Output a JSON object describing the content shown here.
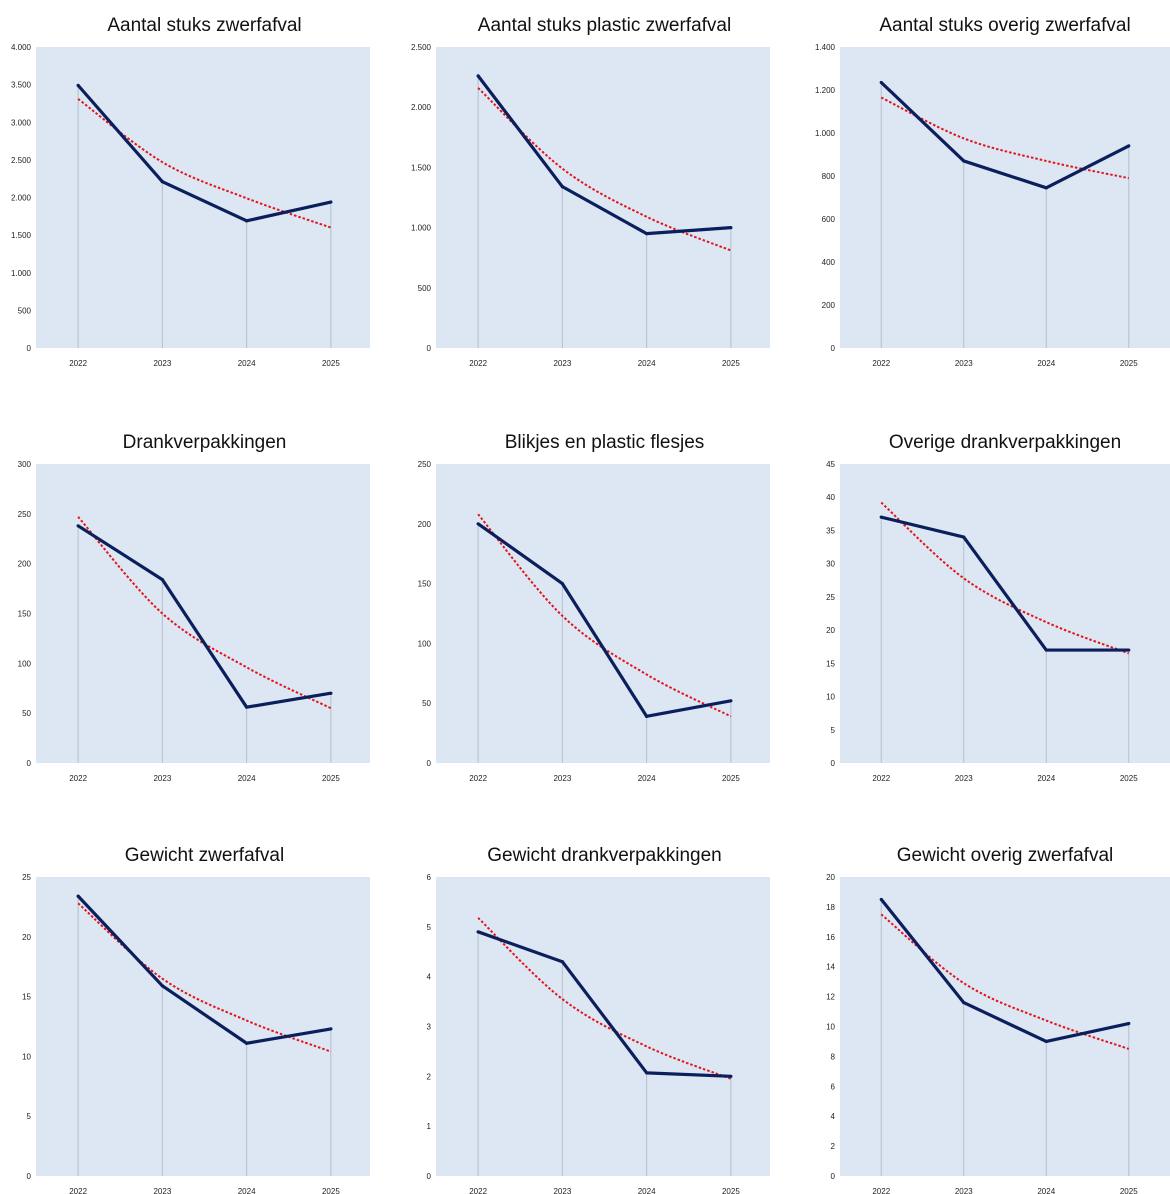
{
  "colors": {
    "plot_background": "#dce7f3",
    "series_line": "#0b1f5c",
    "trend_line": "#e3141b",
    "drop_line": "#b4c0cc"
  },
  "chart_data": [
    {
      "type": "line",
      "title": "Aantal stuks zwerfafval",
      "xlabel": "",
      "ylabel": "",
      "categories": [
        "2022",
        "2023",
        "2024",
        "2025"
      ],
      "series": [
        {
          "values": [
            3490,
            2210,
            1690,
            1940
          ],
          "color": "#0b1f5c"
        }
      ],
      "trendline": {
        "type": "exponential",
        "values": [
          3310,
          2470,
          1990,
          1600
        ],
        "color": "#e3141b",
        "style": "dotted"
      },
      "ylim": [
        0,
        4000
      ],
      "yticks": [
        0,
        500,
        1000,
        1500,
        2000,
        2500,
        3000,
        3500,
        4000
      ],
      "ytick_labels": [
        "0",
        "500",
        "1.000",
        "1.500",
        "2.000",
        "2.500",
        "3.000",
        "3.500",
        "4.000"
      ],
      "grid": false,
      "drop_lines": true
    },
    {
      "type": "line",
      "title": "Aantal stuks plastic zwerfafval",
      "xlabel": "",
      "ylabel": "",
      "categories": [
        "2022",
        "2023",
        "2024",
        "2025"
      ],
      "series": [
        {
          "values": [
            2260,
            1340,
            950,
            1000
          ],
          "color": "#0b1f5c"
        }
      ],
      "trendline": {
        "type": "exponential",
        "values": [
          2160,
          1490,
          1090,
          810
        ],
        "color": "#e3141b",
        "style": "dotted"
      },
      "ylim": [
        0,
        2500
      ],
      "yticks": [
        0,
        500,
        1000,
        1500,
        2000,
        2500
      ],
      "ytick_labels": [
        "0",
        "500",
        "1.000",
        "1.500",
        "2.000",
        "2.500"
      ],
      "grid": false,
      "drop_lines": true
    },
    {
      "type": "line",
      "title": "Aantal stuks overig zwerfafval",
      "xlabel": "",
      "ylabel": "",
      "categories": [
        "2022",
        "2023",
        "2024",
        "2025"
      ],
      "series": [
        {
          "values": [
            1235,
            870,
            745,
            940
          ],
          "color": "#0b1f5c"
        }
      ],
      "trendline": {
        "type": "exponential",
        "values": [
          1165,
          975,
          870,
          790
        ],
        "color": "#e3141b",
        "style": "dotted"
      },
      "ylim": [
        0,
        1400
      ],
      "yticks": [
        0,
        200,
        400,
        600,
        800,
        1000,
        1200,
        1400
      ],
      "ytick_labels": [
        "0",
        "200",
        "400",
        "600",
        "800",
        "1.000",
        "1.200",
        "1.400"
      ],
      "grid": false,
      "drop_lines": true
    },
    {
      "type": "line",
      "title": "Drankverpakkingen",
      "xlabel": "",
      "ylabel": "",
      "categories": [
        "2022",
        "2023",
        "2024",
        "2025"
      ],
      "series": [
        {
          "values": [
            238,
            184,
            56,
            70
          ],
          "color": "#0b1f5c"
        }
      ],
      "trendline": {
        "type": "exponential",
        "values": [
          247,
          150,
          96,
          55
        ],
        "color": "#e3141b",
        "style": "dotted"
      },
      "ylim": [
        0,
        300
      ],
      "yticks": [
        0,
        50,
        100,
        150,
        200,
        250,
        300
      ],
      "ytick_labels": [
        "0",
        "50",
        "100",
        "150",
        "200",
        "250",
        "300"
      ],
      "grid": false,
      "drop_lines": true
    },
    {
      "type": "line",
      "title": "Blikjes en plastic flesjes",
      "xlabel": "",
      "ylabel": "",
      "categories": [
        "2022",
        "2023",
        "2024",
        "2025"
      ],
      "series": [
        {
          "values": [
            200,
            150,
            39,
            52
          ],
          "color": "#0b1f5c"
        }
      ],
      "trendline": {
        "type": "exponential",
        "values": [
          208,
          123,
          74,
          39
        ],
        "color": "#e3141b",
        "style": "dotted"
      },
      "ylim": [
        0,
        250
      ],
      "yticks": [
        0,
        50,
        100,
        150,
        200,
        250
      ],
      "ytick_labels": [
        "0",
        "50",
        "100",
        "150",
        "200",
        "250"
      ],
      "grid": false,
      "drop_lines": true
    },
    {
      "type": "line",
      "title": "Overige drankverpakkingen",
      "xlabel": "",
      "ylabel": "",
      "categories": [
        "2022",
        "2023",
        "2024",
        "2025"
      ],
      "series": [
        {
          "values": [
            37,
            34,
            17,
            17
          ],
          "color": "#0b1f5c"
        }
      ],
      "trendline": {
        "type": "exponential",
        "values": [
          39.2,
          27.8,
          21.2,
          16.5
        ],
        "color": "#e3141b",
        "style": "dotted"
      },
      "ylim": [
        0,
        45
      ],
      "yticks": [
        0,
        5,
        10,
        15,
        20,
        25,
        30,
        35,
        40,
        45
      ],
      "ytick_labels": [
        "0",
        "5",
        "10",
        "15",
        "20",
        "25",
        "30",
        "35",
        "40",
        "45"
      ],
      "grid": false,
      "drop_lines": true
    },
    {
      "type": "line",
      "title": "Gewicht zwerfafval",
      "xlabel": "",
      "ylabel": "",
      "categories": [
        "2022",
        "2023",
        "2024",
        "2025"
      ],
      "series": [
        {
          "values": [
            23.4,
            15.9,
            11.1,
            12.3
          ],
          "color": "#0b1f5c"
        }
      ],
      "trendline": {
        "type": "exponential",
        "values": [
          22.8,
          16.5,
          13.0,
          10.4
        ],
        "color": "#e3141b",
        "style": "dotted"
      },
      "ylim": [
        0,
        25
      ],
      "yticks": [
        0,
        5,
        10,
        15,
        20,
        25
      ],
      "ytick_labels": [
        "0",
        "5",
        "10",
        "15",
        "20",
        "25"
      ],
      "grid": false,
      "drop_lines": true
    },
    {
      "type": "line",
      "title": "Gewicht drankverpakkingen",
      "xlabel": "",
      "ylabel": "",
      "categories": [
        "2022",
        "2023",
        "2024",
        "2025"
      ],
      "series": [
        {
          "values": [
            4.9,
            4.3,
            2.07,
            2.0
          ],
          "color": "#0b1f5c"
        }
      ],
      "trendline": {
        "type": "exponential",
        "values": [
          5.18,
          3.55,
          2.6,
          1.95
        ],
        "color": "#e3141b",
        "style": "dotted"
      },
      "ylim": [
        0,
        6
      ],
      "yticks": [
        0,
        1,
        2,
        3,
        4,
        5,
        6
      ],
      "ytick_labels": [
        "0",
        "1",
        "2",
        "3",
        "4",
        "5",
        "6"
      ],
      "grid": false,
      "drop_lines": true
    },
    {
      "type": "line",
      "title": "Gewicht overig zwerfafval",
      "xlabel": "",
      "ylabel": "",
      "categories": [
        "2022",
        "2023",
        "2024",
        "2025"
      ],
      "series": [
        {
          "values": [
            18.5,
            11.6,
            9.0,
            10.2
          ],
          "color": "#0b1f5c"
        }
      ],
      "trendline": {
        "type": "exponential",
        "values": [
          17.5,
          12.9,
          10.4,
          8.5
        ],
        "color": "#e3141b",
        "style": "dotted"
      },
      "ylim": [
        0,
        20
      ],
      "yticks": [
        0,
        2,
        4,
        6,
        8,
        10,
        12,
        14,
        16,
        18,
        20
      ],
      "ytick_labels": [
        "0",
        "2",
        "4",
        "6",
        "8",
        "10",
        "12",
        "14",
        "16",
        "18",
        "20"
      ],
      "grid": false,
      "drop_lines": true
    }
  ]
}
